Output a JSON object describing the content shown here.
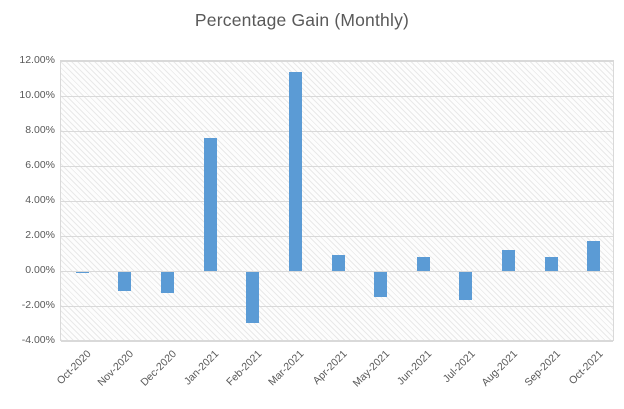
{
  "chart_data": {
    "type": "bar",
    "title": "Percentage Gain (Monthly)",
    "categories": [
      "Oct-2020",
      "Nov-2020",
      "Dec-2020",
      "Jan-2021",
      "Feb-2021",
      "Mar-2021",
      "Apr-2021",
      "May-2021",
      "Jun-2021",
      "Jul-2021",
      "Aug-2021",
      "Sep-2021",
      "Oct-2021"
    ],
    "values": [
      -0.07,
      -1.1,
      -1.2,
      7.6,
      -2.9,
      11.4,
      0.9,
      -1.4,
      0.8,
      -1.6,
      1.2,
      0.8,
      1.7
    ],
    "value_unit": "%",
    "xlabel": "",
    "ylabel": "",
    "ylim": [
      -4,
      12
    ],
    "ytick_step": 2,
    "ytick_labels": [
      "12.00%",
      "10.00%",
      "8.00%",
      "6.00%",
      "4.00%",
      "2.00%",
      "0.00%",
      "-2.00%",
      "-4.00%"
    ],
    "grid": true,
    "legend": "none",
    "plot_background": "light-diagonal-hatch",
    "colors": {
      "bar": "#5b9bd5",
      "gridline": "#d9d9d9",
      "plot_border": "#d9d9d9",
      "text": "#595959",
      "hatch_line": "#e9e9e9",
      "background": "#ffffff"
    }
  }
}
